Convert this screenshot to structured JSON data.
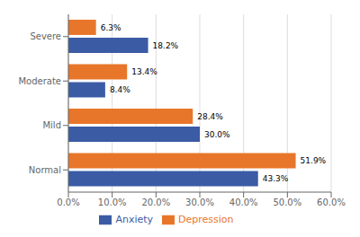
{
  "chart_data": {
    "type": "bar",
    "orientation": "horizontal",
    "categories": [
      "Normal",
      "Mild",
      "Moderate",
      "Severe"
    ],
    "series": [
      {
        "name": "Depression",
        "color": "#E8762A",
        "values": [
          51.9,
          28.4,
          13.4,
          6.3
        ],
        "value_labels": [
          "51.9%",
          "28.4%",
          "13.4%",
          "6.3%"
        ]
      },
      {
        "name": "Anxiety",
        "color": "#3B5BA5",
        "values": [
          43.3,
          30.0,
          8.4,
          18.2
        ],
        "value_labels": [
          "43.3%",
          "30.0%",
          "8.4%",
          "18.2%"
        ]
      }
    ],
    "xlim": [
      0,
      60
    ],
    "xticks": [
      {
        "value": 0,
        "label": "0.0%"
      },
      {
        "value": 10,
        "label": "10.0%"
      },
      {
        "value": 20,
        "label": "20.0%"
      },
      {
        "value": 30,
        "label": "30.0%"
      },
      {
        "value": 40,
        "label": "40.0%"
      },
      {
        "value": 50,
        "label": "50.0%"
      },
      {
        "value": 60,
        "label": "60.0%"
      }
    ],
    "grid": true,
    "legend": "bottom",
    "data_labels": true
  }
}
